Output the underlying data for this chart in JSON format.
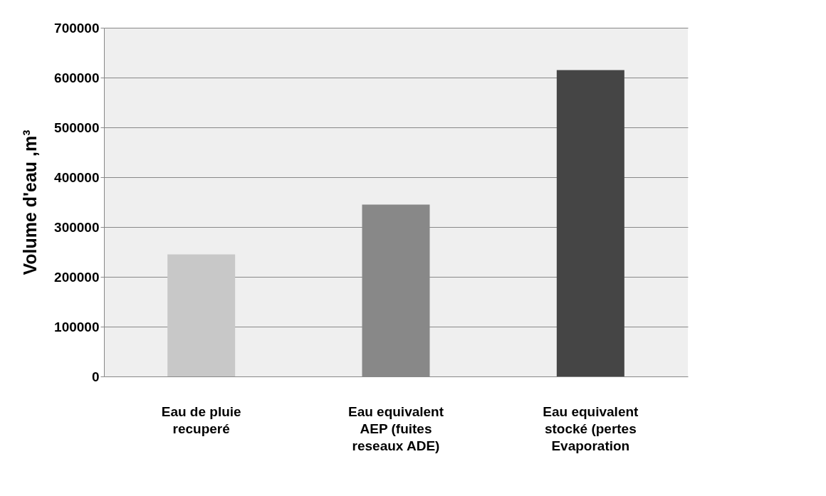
{
  "chart_data": {
    "type": "bar",
    "ylabel": "Volume  d'eau ,m³",
    "categories": [
      "Eau de pluie recuperé",
      "Eau equivalent AEP (fuites reseaux ADE)",
      "Eau equivalent stocké (pertes Evaporation"
    ],
    "values": [
      245000,
      345000,
      615000
    ],
    "colors": [
      "#c8c8c8",
      "#888888",
      "#454545"
    ],
    "ylim": [
      0,
      700000
    ],
    "yticks": [
      0,
      100000,
      200000,
      300000,
      400000,
      500000,
      600000,
      700000
    ],
    "grid": "y"
  }
}
